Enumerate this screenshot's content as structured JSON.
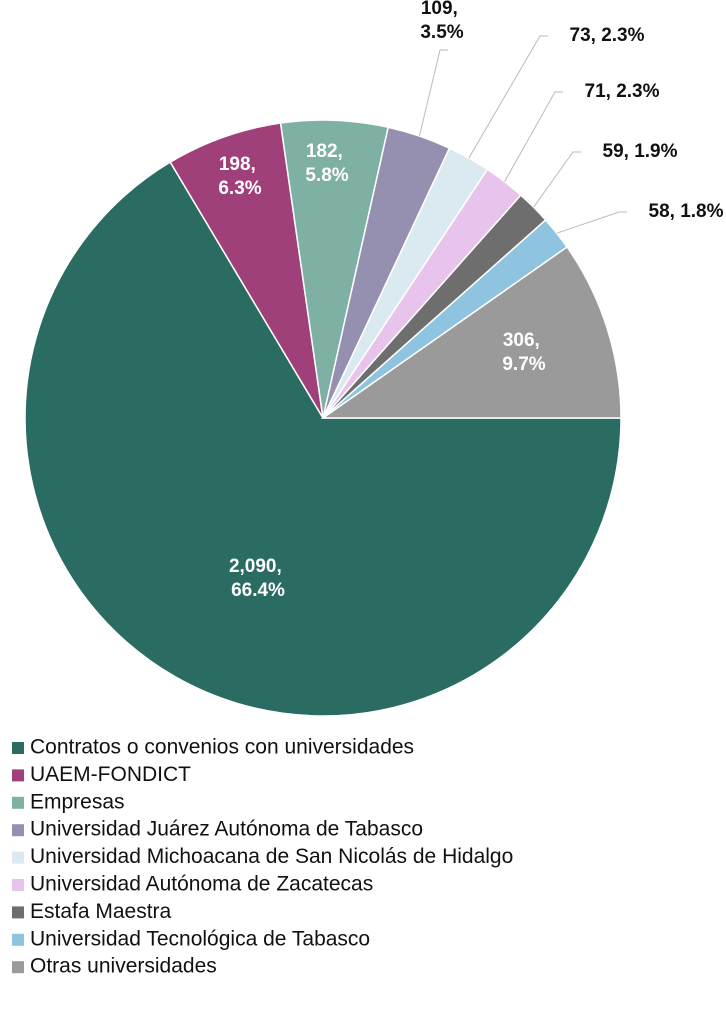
{
  "chart_data": {
    "type": "pie",
    "categories": [
      "Contratos o convenios con universidades",
      "UAEM-FONDICT",
      "Empresas",
      "Universidad Juárez Autónoma de Tabasco",
      "Universidad Michoacana de San Nicolás de Hidalgo",
      "Universidad Autónoma de Zacatecas",
      "Estafa Maestra",
      "Universidad Tecnológica de Tabasco",
      "Otras universidades"
    ],
    "values": [
      2090,
      198,
      182,
      109,
      73,
      71,
      59,
      58,
      306
    ],
    "value_labels": [
      "2,090, 66.4%",
      "198, 6.3%",
      "182, 5.8%",
      "109, 3.5%",
      "73, 2.3%",
      "71, 2.3%",
      "59, 1.9%",
      "58, 1.8%",
      "306, 9.7%"
    ],
    "colors": [
      "#2a6b62",
      "#a0407a",
      "#7fb0a4",
      "#9690b0",
      "#dbe9f0",
      "#e8c4ec",
      "#6e6e6e",
      "#8ec4e0",
      "#9a9a9a"
    ],
    "legend": "bottom"
  }
}
